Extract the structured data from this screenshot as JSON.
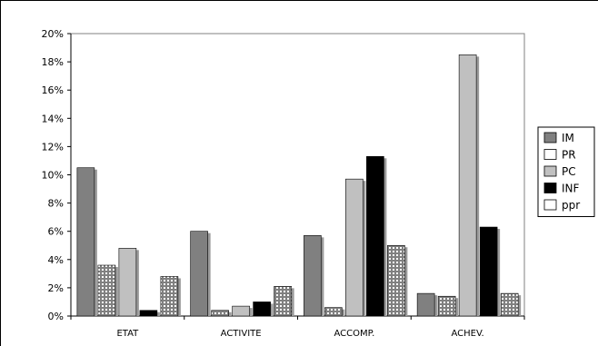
{
  "chart_data": {
    "type": "bar",
    "title": "",
    "xlabel": "",
    "ylabel": "",
    "ylim": [
      0,
      20
    ],
    "y_ticks": [
      "0%",
      "2%",
      "4%",
      "6%",
      "8%",
      "10%",
      "12%",
      "14%",
      "16%",
      "18%",
      "20%"
    ],
    "categories": [
      "ETAT",
      "ACTIVITE",
      "ACCOMP.",
      "ACHEV."
    ],
    "legend_position": "right",
    "grid": false,
    "series": [
      {
        "name": "IM",
        "values": [
          10.5,
          6.0,
          5.7,
          1.6
        ],
        "color": "#808080",
        "pattern": "solid"
      },
      {
        "name": "PR",
        "values": [
          3.6,
          0.4,
          0.6,
          1.4
        ],
        "color": "#ffffff",
        "pattern": "dotted"
      },
      {
        "name": "PC",
        "values": [
          4.8,
          0.7,
          9.7,
          18.5
        ],
        "color": "#c0c0c0",
        "pattern": "solid"
      },
      {
        "name": "INF",
        "values": [
          0.4,
          1.0,
          11.3,
          6.3
        ],
        "color": "#000000",
        "pattern": "solid"
      },
      {
        "name": "ppr",
        "values": [
          2.8,
          2.1,
          5.0,
          1.6
        ],
        "color": "#ffffff",
        "pattern": "dotted"
      }
    ]
  }
}
